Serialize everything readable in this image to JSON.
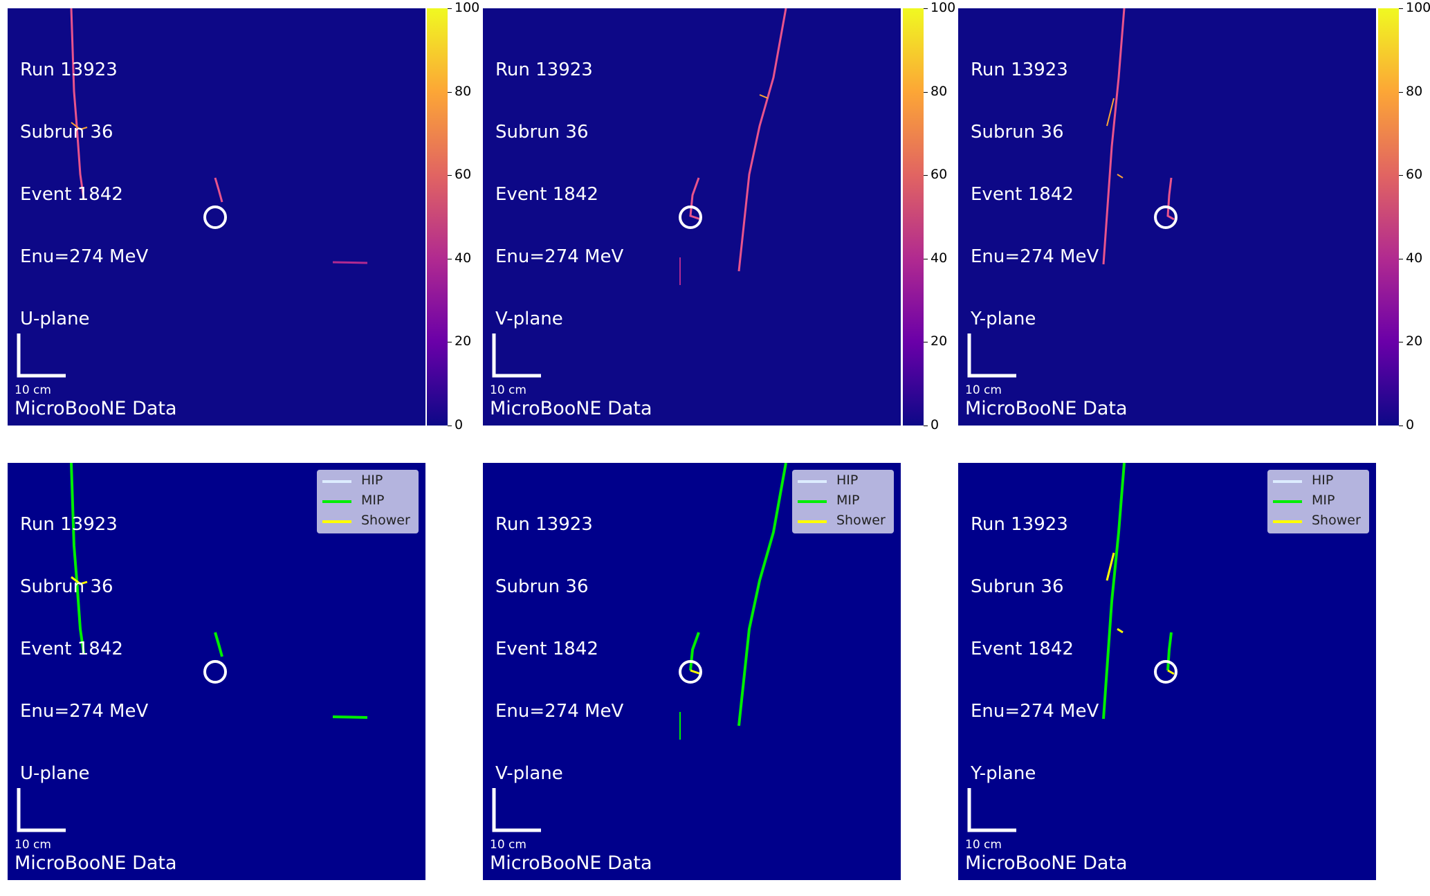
{
  "event": {
    "run": "Run 13923",
    "subrun": "Subrun 36",
    "event": "Event 1842",
    "enu": "Enu=274 MeV"
  },
  "planes": [
    "U-plane",
    "V-plane",
    "Y-plane"
  ],
  "scale_label": "10 cm",
  "data_label": "MicroBooNE Data",
  "colorbar": {
    "ticks": [
      "100",
      "80",
      "60",
      "40",
      "20",
      "0"
    ],
    "colormap": "plasma",
    "range": [
      0,
      100
    ]
  },
  "legend": [
    {
      "label": "HIP",
      "color": "#dcecff"
    },
    {
      "label": "MIP",
      "color": "#00ee00"
    },
    {
      "label": "Shower",
      "color": "#ffff00"
    }
  ],
  "colors": {
    "charge_background": "#0d0887",
    "segmentation_background": "#00008b",
    "charge_track": "#e8548c",
    "mip": "#00ee00",
    "shower": "#ffff00"
  }
}
